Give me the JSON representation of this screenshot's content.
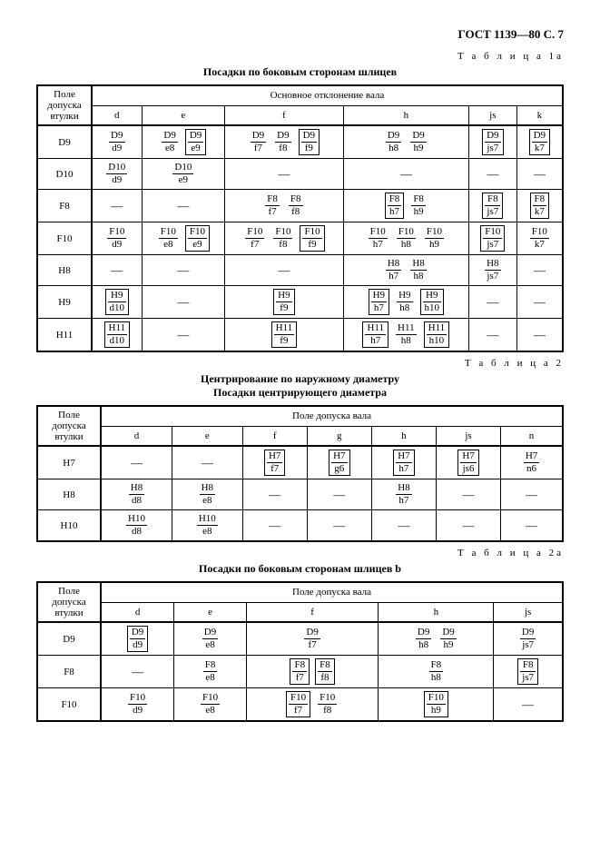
{
  "header": "ГОСТ 1139—80 С. 7",
  "labels": {
    "t1a": "Т а б л и ц а  1а",
    "t2": "Т а б л и ц а  2",
    "t2a": "Т а б л и ц а  2а"
  },
  "titles": {
    "t1a": "Посадки по боковым сторонам шлицев",
    "t2_l1": "Центрирование по наружному диаметру",
    "t2_l2": "Посадки центрирующего диаметра",
    "t2a": "Посадки по боковым сторонам шлицев b"
  },
  "col_hdrs": {
    "pole_dop_vtul": "Поле допуска втулки",
    "osnov_otkl_vala": "Основное отклонение вала",
    "pole_dop_vala": "Поле допуска вала"
  },
  "sub_cols": {
    "d": "d",
    "e": "e",
    "f": "f",
    "g": "g",
    "h": "h",
    "js": "js",
    "k": "k",
    "n": "n"
  },
  "dash": "—",
  "t1a": {
    "rows": [
      "D9",
      "D10",
      "F8",
      "F10",
      "H8",
      "H9",
      "H11"
    ],
    "cells": {
      "D9": {
        "d": [
          [
            "D9",
            "d9",
            false
          ]
        ],
        "e": [
          [
            "D9",
            "e8",
            false
          ],
          [
            "D9",
            "e9",
            true
          ]
        ],
        "f": [
          [
            "D9",
            "f7",
            false
          ],
          [
            "D9",
            "f8",
            false
          ],
          [
            "D9",
            "f9",
            true
          ]
        ],
        "h": [
          [
            "D9",
            "h8",
            false
          ],
          [
            "D9",
            "h9",
            false
          ]
        ],
        "js": [
          [
            "D9",
            "js7",
            true
          ]
        ],
        "k": [
          [
            "D9",
            "k7",
            true
          ]
        ]
      },
      "D10": {
        "d": [
          [
            "D10",
            "d9",
            false
          ]
        ],
        "e": [
          [
            "D10",
            "e9",
            false
          ]
        ],
        "f": null,
        "h": null,
        "js": null,
        "k": null
      },
      "F8": {
        "d": null,
        "e": null,
        "f": [
          [
            "F8",
            "f7",
            false
          ],
          [
            "F8",
            "f8",
            false
          ]
        ],
        "h": [
          [
            "F8",
            "h7",
            true
          ],
          [
            "F8",
            "h9",
            false
          ]
        ],
        "js": [
          [
            "F8",
            "js7",
            true
          ]
        ],
        "k": [
          [
            "F8",
            "k7",
            true
          ]
        ]
      },
      "F10": {
        "d": [
          [
            "F10",
            "d9",
            false
          ]
        ],
        "e": [
          [
            "F10",
            "e8",
            false
          ],
          [
            "F10",
            "e9",
            true
          ]
        ],
        "f": [
          [
            "F10",
            "f7",
            false
          ],
          [
            "F10",
            "f8",
            false
          ],
          [
            "F10",
            "f9",
            true
          ]
        ],
        "h": [
          [
            "F10",
            "h7",
            false
          ],
          [
            "F10",
            "h8",
            false
          ],
          [
            "F10",
            "h9",
            false
          ]
        ],
        "js": [
          [
            "F10",
            "js7",
            true
          ]
        ],
        "k": [
          [
            "F10",
            "k7",
            false
          ]
        ]
      },
      "H8": {
        "d": null,
        "e": null,
        "f": null,
        "h": [
          [
            "H8",
            "h7",
            false
          ],
          [
            "H8",
            "h8",
            false
          ]
        ],
        "js": [
          [
            "H8",
            "js7",
            false
          ]
        ],
        "k": null
      },
      "H9": {
        "d": [
          [
            "H9",
            "d10",
            true
          ]
        ],
        "e": null,
        "f": [
          [
            "H9",
            "f9",
            true
          ]
        ],
        "h": [
          [
            "H9",
            "h7",
            true
          ],
          [
            "H9",
            "h8",
            false
          ],
          [
            "H9",
            "h10",
            true
          ]
        ],
        "js": null,
        "k": null
      },
      "H11": {
        "d": [
          [
            "H11",
            "d10",
            true
          ]
        ],
        "e": null,
        "f": [
          [
            "H11",
            "f9",
            true
          ]
        ],
        "h": [
          [
            "H11",
            "h7",
            true
          ],
          [
            "H11",
            "h8",
            false
          ],
          [
            "H11",
            "h10",
            true
          ]
        ],
        "js": null,
        "k": null
      }
    }
  },
  "t2": {
    "rows": [
      "H7",
      "H8",
      "H10"
    ],
    "cells": {
      "H7": {
        "d": null,
        "e": null,
        "f": [
          [
            "H7",
            "f7",
            true
          ]
        ],
        "g": [
          [
            "H7",
            "g6",
            true
          ]
        ],
        "h": [
          [
            "H7",
            "h7",
            true
          ]
        ],
        "js": [
          [
            "H7",
            "js6",
            true
          ]
        ],
        "n": [
          [
            "H7",
            "n6",
            false
          ]
        ]
      },
      "H8": {
        "d": [
          [
            "H8",
            "d8",
            false
          ]
        ],
        "e": [
          [
            "H8",
            "e8",
            false
          ]
        ],
        "f": null,
        "g": null,
        "h": [
          [
            "H8",
            "h7",
            false
          ]
        ],
        "js": null,
        "n": null
      },
      "H10": {
        "d": [
          [
            "H10",
            "d8",
            false
          ]
        ],
        "e": [
          [
            "H10",
            "e8",
            false
          ]
        ],
        "f": null,
        "g": null,
        "h": null,
        "js": null,
        "n": null
      }
    }
  },
  "t2a": {
    "rows": [
      "D9",
      "F8",
      "F10"
    ],
    "cells": {
      "D9": {
        "d": [
          [
            "D9",
            "d9",
            true
          ]
        ],
        "e": [
          [
            "D9",
            "e8",
            false
          ]
        ],
        "f": [
          [
            "D9",
            "f7",
            false
          ]
        ],
        "h": [
          [
            "D9",
            "h8",
            false
          ],
          [
            "D9",
            "h9",
            false
          ]
        ],
        "js": [
          [
            "D9",
            "js7",
            false
          ]
        ]
      },
      "F8": {
        "d": null,
        "e": [
          [
            "F8",
            "e8",
            false
          ]
        ],
        "f": [
          [
            "F8",
            "f7",
            true
          ],
          [
            "F8",
            "f8",
            true
          ]
        ],
        "h": [
          [
            "F8",
            "h8",
            false
          ]
        ],
        "js": [
          [
            "F8",
            "js7",
            true
          ]
        ]
      },
      "F10": {
        "d": [
          [
            "F10",
            "d9",
            false
          ]
        ],
        "e": [
          [
            "F10",
            "e8",
            false
          ]
        ],
        "f": [
          [
            "F10",
            "f7",
            true
          ],
          [
            "F10",
            "f8",
            false
          ]
        ],
        "h": [
          [
            "F10",
            "h9",
            true
          ]
        ],
        "js": null
      }
    }
  }
}
